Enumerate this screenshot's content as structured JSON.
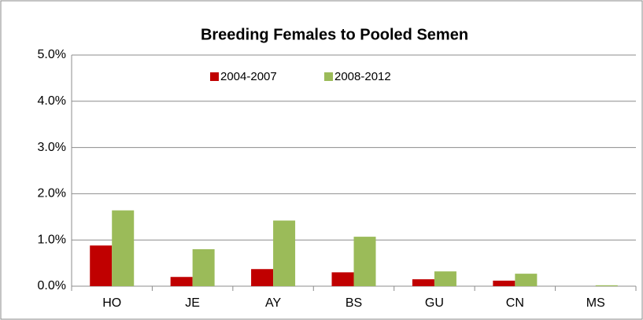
{
  "chart_data": {
    "type": "bar",
    "title": "Breeding Females to Pooled Semen",
    "categories": [
      "HO",
      "JE",
      "AY",
      "BS",
      "GU",
      "CN",
      "MS"
    ],
    "series": [
      {
        "name": "2004-2007",
        "color": "#c00000",
        "values": [
          0.88,
          0.2,
          0.37,
          0.3,
          0.15,
          0.12,
          0
        ]
      },
      {
        "name": "2008-2012",
        "color": "#9bbb59",
        "values": [
          1.64,
          0.8,
          1.42,
          1.07,
          0.32,
          0.27,
          0.02
        ]
      }
    ],
    "ylim": [
      0,
      5
    ],
    "yticks": [
      {
        "value": 0,
        "label": "0.0%"
      },
      {
        "value": 1,
        "label": "1.0%"
      },
      {
        "value": 2,
        "label": "2.0%"
      },
      {
        "value": 3,
        "label": "3.0%"
      },
      {
        "value": 4,
        "label": "4.0%"
      },
      {
        "value": 5,
        "label": "5.0%"
      }
    ],
    "grid": true,
    "legend": "top"
  }
}
